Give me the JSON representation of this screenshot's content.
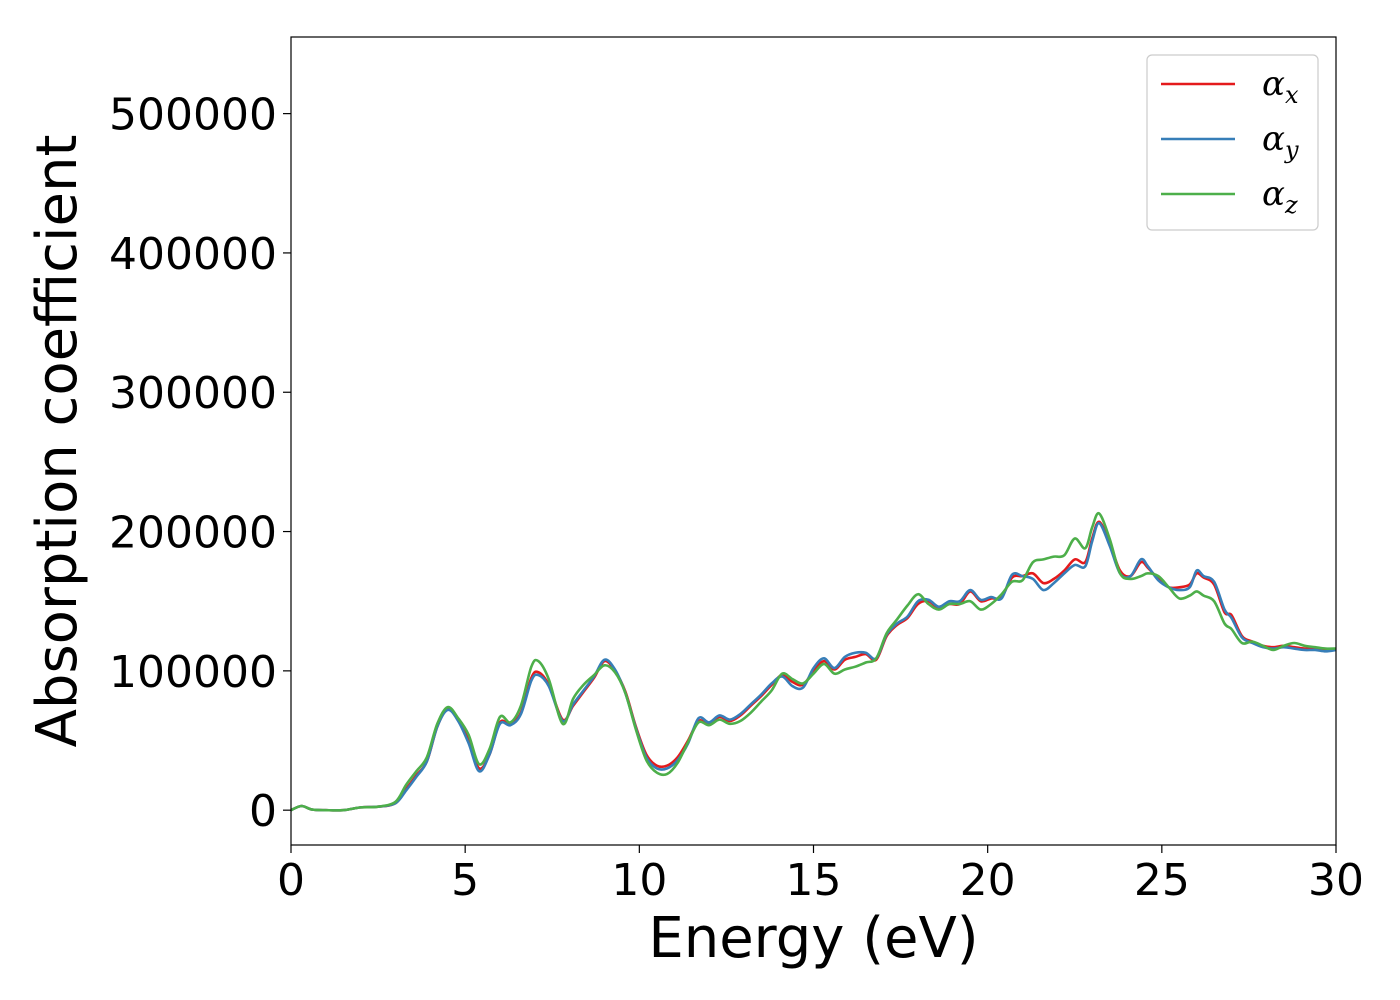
{
  "chart_data": {
    "type": "line",
    "xlabel": "Energy (eV)",
    "ylabel": "Absorption coefficient",
    "xlim": [
      0,
      30
    ],
    "ylim": [
      -25000,
      555000
    ],
    "xticks": [
      0,
      5,
      10,
      15,
      20,
      25,
      30
    ],
    "xtick_labels": [
      "0",
      "5",
      "10",
      "15",
      "20",
      "25",
      "30"
    ],
    "yticks": [
      0,
      100000,
      200000,
      300000,
      400000,
      500000
    ],
    "ytick_labels": [
      "0",
      "100000",
      "200000",
      "300000",
      "400000",
      "500000"
    ],
    "grid": false,
    "legend_position": "top-right",
    "x": [
      0,
      0.3,
      0.6,
      1.0,
      1.5,
      2.0,
      2.5,
      3.0,
      3.3,
      3.6,
      3.9,
      4.2,
      4.5,
      4.8,
      5.1,
      5.4,
      5.7,
      6.0,
      6.3,
      6.6,
      6.9,
      7.1,
      7.4,
      7.8,
      8.1,
      8.4,
      8.7,
      9.0,
      9.3,
      9.6,
      9.9,
      10.2,
      10.5,
      10.8,
      11.1,
      11.4,
      11.7,
      12.0,
      12.3,
      12.6,
      12.9,
      13.2,
      13.5,
      13.8,
      14.1,
      14.4,
      14.7,
      15.0,
      15.3,
      15.6,
      15.9,
      16.2,
      16.5,
      16.8,
      17.1,
      17.4,
      17.7,
      18.0,
      18.3,
      18.6,
      18.9,
      19.2,
      19.5,
      19.8,
      20.1,
      20.4,
      20.7,
      21.0,
      21.3,
      21.6,
      21.9,
      22.2,
      22.5,
      22.8,
      23.0,
      23.2,
      23.5,
      23.8,
      24.1,
      24.4,
      24.6,
      24.9,
      25.2,
      25.5,
      25.8,
      26.0,
      26.2,
      26.5,
      26.8,
      27.0,
      27.3,
      27.6,
      27.9,
      28.2,
      28.5,
      28.8,
      29.1,
      29.4,
      29.7,
      30.0
    ],
    "series": [
      {
        "name": "α",
        "subscript": "x",
        "color": "#e41a1c",
        "values": [
          0,
          3000,
          500,
          0,
          0,
          2000,
          2500,
          5000,
          15000,
          25000,
          35000,
          60000,
          73000,
          65000,
          50000,
          30000,
          40000,
          63000,
          62000,
          70000,
          95000,
          99000,
          90000,
          65000,
          75000,
          85000,
          95000,
          107000,
          100000,
          85000,
          60000,
          40000,
          32000,
          32000,
          38000,
          50000,
          64000,
          62000,
          67000,
          64000,
          68000,
          75000,
          82000,
          90000,
          97000,
          92000,
          90000,
          100000,
          107000,
          101000,
          108000,
          110000,
          112000,
          108000,
          125000,
          133000,
          138000,
          148000,
          150000,
          145000,
          148000,
          148000,
          157000,
          150000,
          152000,
          153000,
          167000,
          168000,
          170000,
          163000,
          166000,
          172000,
          180000,
          178000,
          195000,
          207000,
          192000,
          172000,
          168000,
          178000,
          174000,
          166000,
          160000,
          160000,
          162000,
          170000,
          167000,
          162000,
          142000,
          140000,
          125000,
          121000,
          118000,
          117000,
          118000,
          117000,
          116000,
          116000,
          115000,
          115000
        ]
      },
      {
        "name": "α",
        "subscript": "y",
        "color": "#377eb8",
        "values": [
          0,
          3000,
          500,
          0,
          0,
          2000,
          2500,
          5000,
          14000,
          24000,
          35000,
          60000,
          72000,
          64000,
          48000,
          28000,
          40000,
          62000,
          61000,
          69000,
          93000,
          97000,
          89000,
          64000,
          76000,
          86000,
          96000,
          108000,
          101000,
          84000,
          59000,
          38000,
          30000,
          30000,
          36000,
          48000,
          66000,
          63000,
          68000,
          65000,
          69000,
          76000,
          83000,
          91000,
          96000,
          89000,
          88000,
          102000,
          109000,
          102000,
          110000,
          113000,
          113000,
          109000,
          126000,
          134000,
          139000,
          150000,
          151000,
          146000,
          150000,
          150000,
          158000,
          151000,
          153000,
          152000,
          169000,
          168000,
          166000,
          158000,
          163000,
          170000,
          176000,
          175000,
          193000,
          206000,
          190000,
          170000,
          168000,
          180000,
          175000,
          165000,
          160000,
          158000,
          160000,
          172000,
          168000,
          164000,
          144000,
          138000,
          124000,
          120000,
          117000,
          116000,
          117000,
          116000,
          115000,
          115000,
          114000,
          115000
        ]
      },
      {
        "name": "α",
        "subscript": "z",
        "color": "#4daf4a",
        "values": [
          0,
          3000,
          500,
          0,
          0,
          2000,
          2500,
          6000,
          18000,
          28000,
          38000,
          62000,
          74000,
          66000,
          54000,
          33000,
          44000,
          67000,
          63000,
          75000,
          103000,
          107000,
          94000,
          62000,
          80000,
          90000,
          97000,
          104000,
          99000,
          84000,
          58000,
          36000,
          27000,
          26000,
          34000,
          49000,
          63000,
          61000,
          65000,
          62000,
          64000,
          70000,
          78000,
          86000,
          98000,
          94000,
          91000,
          98000,
          105000,
          98000,
          101000,
          103000,
          106000,
          109000,
          127000,
          137000,
          147000,
          155000,
          148000,
          144000,
          148000,
          148000,
          150000,
          144000,
          148000,
          155000,
          164000,
          165000,
          178000,
          180000,
          182000,
          183000,
          195000,
          188000,
          203000,
          213000,
          195000,
          170000,
          166000,
          168000,
          170000,
          168000,
          160000,
          152000,
          154000,
          157000,
          154000,
          150000,
          134000,
          130000,
          120000,
          121000,
          118000,
          115000,
          118000,
          120000,
          118000,
          117000,
          116000,
          116000
        ]
      }
    ]
  }
}
